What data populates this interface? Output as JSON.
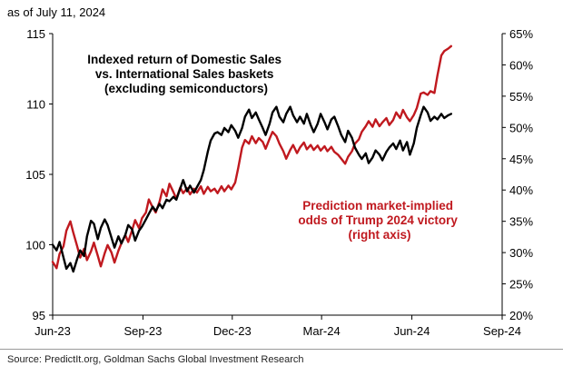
{
  "header": {
    "as_of": "as of July 11, 2024"
  },
  "footer": {
    "source": "Source: PredictIt.org, Goldman Sachs Global Investment Research"
  },
  "chart_data": {
    "type": "line",
    "title_lines": [
      "Indexed return of Domestic Sales",
      "vs. International Sales baskets",
      "(excluding semiconductors)"
    ],
    "annotation_lines": [
      "Prediction market-implied",
      "odds of Trump 2024 victory",
      "(right axis)"
    ],
    "x_axis": {
      "type": "date",
      "range": [
        "2023-06-01",
        "2024-09-01"
      ],
      "tick_values": [
        "2023-06-01",
        "2023-09-01",
        "2023-12-01",
        "2024-03-01",
        "2024-06-01",
        "2024-09-01"
      ],
      "tick_labels": [
        "Jun-23",
        "Sep-23",
        "Dec-23",
        "Mar-24",
        "Jun-24",
        "Sep-24"
      ]
    },
    "y_left": {
      "range": [
        95,
        115
      ],
      "ticks": [
        95,
        100,
        105,
        110,
        115
      ],
      "tick_labels": [
        "95",
        "100",
        "105",
        "110",
        "115"
      ]
    },
    "y_right": {
      "range": [
        20,
        65
      ],
      "ticks": [
        20,
        25,
        30,
        35,
        40,
        45,
        50,
        55,
        60,
        65
      ],
      "tick_labels": [
        "20%",
        "25%",
        "30%",
        "35%",
        "40%",
        "45%",
        "50%",
        "55%",
        "60%",
        "65%"
      ]
    },
    "grid": false,
    "series": [
      {
        "axis": "left",
        "color": "#000000",
        "points": [
          [
            "2023-06-01",
            100.0
          ],
          [
            "2023-06-05",
            99.6
          ],
          [
            "2023-06-08",
            100.2
          ],
          [
            "2023-06-12",
            99.1
          ],
          [
            "2023-06-15",
            98.3
          ],
          [
            "2023-06-19",
            98.7
          ],
          [
            "2023-06-22",
            98.1
          ],
          [
            "2023-06-26",
            99.0
          ],
          [
            "2023-06-29",
            99.6
          ],
          [
            "2023-07-03",
            99.2
          ],
          [
            "2023-07-06",
            100.6
          ],
          [
            "2023-07-10",
            101.7
          ],
          [
            "2023-07-13",
            101.5
          ],
          [
            "2023-07-17",
            100.4
          ],
          [
            "2023-07-20",
            101.2
          ],
          [
            "2023-07-24",
            101.8
          ],
          [
            "2023-07-27",
            101.4
          ],
          [
            "2023-07-31",
            100.5
          ],
          [
            "2023-08-03",
            99.8
          ],
          [
            "2023-08-07",
            100.6
          ],
          [
            "2023-08-10",
            100.1
          ],
          [
            "2023-08-14",
            100.7
          ],
          [
            "2023-08-17",
            101.4
          ],
          [
            "2023-08-21",
            101.1
          ],
          [
            "2023-08-24",
            100.3
          ],
          [
            "2023-08-28",
            101.0
          ],
          [
            "2023-08-31",
            101.3
          ],
          [
            "2023-09-04",
            101.8
          ],
          [
            "2023-09-07",
            102.2
          ],
          [
            "2023-09-11",
            102.7
          ],
          [
            "2023-09-14",
            102.4
          ],
          [
            "2023-09-18",
            102.9
          ],
          [
            "2023-09-21",
            102.6
          ],
          [
            "2023-09-25",
            103.2
          ],
          [
            "2023-09-28",
            103.1
          ],
          [
            "2023-10-02",
            103.4
          ],
          [
            "2023-10-05",
            103.2
          ],
          [
            "2023-10-09",
            104.0
          ],
          [
            "2023-10-12",
            104.6
          ],
          [
            "2023-10-16",
            103.8
          ],
          [
            "2023-10-19",
            104.2
          ],
          [
            "2023-10-23",
            103.7
          ],
          [
            "2023-10-26",
            104.1
          ],
          [
            "2023-10-30",
            104.6
          ],
          [
            "2023-11-02",
            105.3
          ],
          [
            "2023-11-06",
            106.6
          ],
          [
            "2023-11-09",
            107.4
          ],
          [
            "2023-11-13",
            107.9
          ],
          [
            "2023-11-16",
            108.0
          ],
          [
            "2023-11-20",
            107.8
          ],
          [
            "2023-11-23",
            108.3
          ],
          [
            "2023-11-27",
            108.0
          ],
          [
            "2023-11-30",
            108.5
          ],
          [
            "2023-12-04",
            108.1
          ],
          [
            "2023-12-07",
            107.6
          ],
          [
            "2023-12-11",
            108.3
          ],
          [
            "2023-12-14",
            109.1
          ],
          [
            "2023-12-18",
            109.6
          ],
          [
            "2023-12-21",
            109.0
          ],
          [
            "2023-12-25",
            109.4
          ],
          [
            "2023-12-28",
            108.9
          ],
          [
            "2024-01-01",
            108.3
          ],
          [
            "2024-01-04",
            107.8
          ],
          [
            "2024-01-08",
            108.6
          ],
          [
            "2024-01-11",
            109.4
          ],
          [
            "2024-01-15",
            109.8
          ],
          [
            "2024-01-18",
            109.1
          ],
          [
            "2024-01-22",
            108.7
          ],
          [
            "2024-01-25",
            109.3
          ],
          [
            "2024-01-29",
            109.8
          ],
          [
            "2024-02-01",
            109.2
          ],
          [
            "2024-02-05",
            108.7
          ],
          [
            "2024-02-08",
            109.1
          ],
          [
            "2024-02-12",
            108.6
          ],
          [
            "2024-02-15",
            109.3
          ],
          [
            "2024-02-19",
            108.5
          ],
          [
            "2024-02-22",
            108.0
          ],
          [
            "2024-02-26",
            108.6
          ],
          [
            "2024-02-29",
            109.3
          ],
          [
            "2024-03-04",
            108.7
          ],
          [
            "2024-03-07",
            108.2
          ],
          [
            "2024-03-11",
            108.9
          ],
          [
            "2024-03-14",
            109.1
          ],
          [
            "2024-03-18",
            108.4
          ],
          [
            "2024-03-21",
            107.8
          ],
          [
            "2024-03-25",
            107.3
          ],
          [
            "2024-03-28",
            108.1
          ],
          [
            "2024-04-01",
            107.6
          ],
          [
            "2024-04-04",
            106.9
          ],
          [
            "2024-04-08",
            106.4
          ],
          [
            "2024-04-11",
            106.1
          ],
          [
            "2024-04-15",
            106.5
          ],
          [
            "2024-04-18",
            105.8
          ],
          [
            "2024-04-22",
            106.2
          ],
          [
            "2024-04-25",
            106.7
          ],
          [
            "2024-04-29",
            106.4
          ],
          [
            "2024-05-02",
            106.0
          ],
          [
            "2024-05-06",
            106.6
          ],
          [
            "2024-05-09",
            106.9
          ],
          [
            "2024-05-13",
            107.2
          ],
          [
            "2024-05-16",
            106.8
          ],
          [
            "2024-05-20",
            107.4
          ],
          [
            "2024-05-23",
            106.7
          ],
          [
            "2024-05-27",
            107.3
          ],
          [
            "2024-05-30",
            106.4
          ],
          [
            "2024-06-03",
            107.2
          ],
          [
            "2024-06-06",
            108.3
          ],
          [
            "2024-06-10",
            109.2
          ],
          [
            "2024-06-13",
            109.8
          ],
          [
            "2024-06-17",
            109.4
          ],
          [
            "2024-06-20",
            108.8
          ],
          [
            "2024-06-24",
            109.1
          ],
          [
            "2024-06-27",
            108.9
          ],
          [
            "2024-07-01",
            109.3
          ],
          [
            "2024-07-04",
            109.0
          ],
          [
            "2024-07-08",
            109.2
          ],
          [
            "2024-07-11",
            109.3
          ]
        ]
      },
      {
        "axis": "right",
        "color": "#c0191f",
        "points": [
          [
            "2023-06-01",
            28.5
          ],
          [
            "2023-06-05",
            27.5
          ],
          [
            "2023-06-08",
            29.8
          ],
          [
            "2023-06-12",
            31.0
          ],
          [
            "2023-06-15",
            33.5
          ],
          [
            "2023-06-19",
            35.0
          ],
          [
            "2023-06-22",
            33.2
          ],
          [
            "2023-06-26",
            31.0
          ],
          [
            "2023-06-29",
            29.2
          ],
          [
            "2023-07-03",
            30.6
          ],
          [
            "2023-07-06",
            28.8
          ],
          [
            "2023-07-10",
            30.2
          ],
          [
            "2023-07-13",
            31.6
          ],
          [
            "2023-07-17",
            29.5
          ],
          [
            "2023-07-20",
            27.8
          ],
          [
            "2023-07-24",
            29.9
          ],
          [
            "2023-07-27",
            31.2
          ],
          [
            "2023-07-31",
            30.0
          ],
          [
            "2023-08-03",
            28.4
          ],
          [
            "2023-08-07",
            30.3
          ],
          [
            "2023-08-10",
            31.5
          ],
          [
            "2023-08-14",
            32.8
          ],
          [
            "2023-08-17",
            31.7
          ],
          [
            "2023-08-21",
            33.6
          ],
          [
            "2023-08-24",
            35.2
          ],
          [
            "2023-08-28",
            33.9
          ],
          [
            "2023-08-31",
            35.5
          ],
          [
            "2023-09-04",
            36.4
          ],
          [
            "2023-09-07",
            38.5
          ],
          [
            "2023-09-11",
            37.2
          ],
          [
            "2023-09-14",
            36.4
          ],
          [
            "2023-09-18",
            38.2
          ],
          [
            "2023-09-21",
            40.1
          ],
          [
            "2023-09-25",
            39.0
          ],
          [
            "2023-09-28",
            41.0
          ],
          [
            "2023-10-02",
            39.7
          ],
          [
            "2023-10-05",
            38.6
          ],
          [
            "2023-10-09",
            40.4
          ],
          [
            "2023-10-12",
            39.5
          ],
          [
            "2023-10-16",
            40.3
          ],
          [
            "2023-10-19",
            39.3
          ],
          [
            "2023-10-23",
            40.2
          ],
          [
            "2023-10-26",
            39.6
          ],
          [
            "2023-10-30",
            40.6
          ],
          [
            "2023-11-02",
            39.4
          ],
          [
            "2023-11-06",
            40.5
          ],
          [
            "2023-11-09",
            39.8
          ],
          [
            "2023-11-13",
            40.2
          ],
          [
            "2023-11-16",
            39.5
          ],
          [
            "2023-11-20",
            40.6
          ],
          [
            "2023-11-23",
            39.8
          ],
          [
            "2023-11-27",
            40.7
          ],
          [
            "2023-11-30",
            40.1
          ],
          [
            "2023-12-04",
            41.2
          ],
          [
            "2023-12-07",
            43.5
          ],
          [
            "2023-12-11",
            46.8
          ],
          [
            "2023-12-14",
            48.0
          ],
          [
            "2023-12-18",
            47.4
          ],
          [
            "2023-12-21",
            48.6
          ],
          [
            "2023-12-25",
            47.5
          ],
          [
            "2023-12-28",
            48.3
          ],
          [
            "2024-01-01",
            47.7
          ],
          [
            "2024-01-04",
            46.6
          ],
          [
            "2024-01-08",
            48.2
          ],
          [
            "2024-01-11",
            49.3
          ],
          [
            "2024-01-15",
            48.6
          ],
          [
            "2024-01-18",
            47.4
          ],
          [
            "2024-01-22",
            46.2
          ],
          [
            "2024-01-25",
            45.0
          ],
          [
            "2024-01-29",
            46.4
          ],
          [
            "2024-02-01",
            47.2
          ],
          [
            "2024-02-05",
            45.9
          ],
          [
            "2024-02-08",
            46.8
          ],
          [
            "2024-02-12",
            47.6
          ],
          [
            "2024-02-15",
            46.5
          ],
          [
            "2024-02-19",
            47.2
          ],
          [
            "2024-02-22",
            46.4
          ],
          [
            "2024-02-26",
            47.1
          ],
          [
            "2024-02-29",
            46.3
          ],
          [
            "2024-03-04",
            47.0
          ],
          [
            "2024-03-07",
            46.2
          ],
          [
            "2024-03-11",
            46.9
          ],
          [
            "2024-03-14",
            46.1
          ],
          [
            "2024-03-18",
            45.6
          ],
          [
            "2024-03-21",
            45.0
          ],
          [
            "2024-03-25",
            44.2
          ],
          [
            "2024-03-28",
            45.3
          ],
          [
            "2024-04-01",
            46.2
          ],
          [
            "2024-04-04",
            47.4
          ],
          [
            "2024-04-08",
            48.1
          ],
          [
            "2024-04-11",
            49.3
          ],
          [
            "2024-04-15",
            50.2
          ],
          [
            "2024-04-18",
            51.0
          ],
          [
            "2024-04-22",
            50.1
          ],
          [
            "2024-04-25",
            51.3
          ],
          [
            "2024-04-29",
            50.2
          ],
          [
            "2024-05-02",
            50.8
          ],
          [
            "2024-05-06",
            51.5
          ],
          [
            "2024-05-09",
            50.4
          ],
          [
            "2024-05-13",
            51.2
          ],
          [
            "2024-05-16",
            52.4
          ],
          [
            "2024-05-20",
            51.5
          ],
          [
            "2024-05-23",
            52.8
          ],
          [
            "2024-05-27",
            51.6
          ],
          [
            "2024-05-30",
            51.0
          ],
          [
            "2024-06-03",
            52.0
          ],
          [
            "2024-06-06",
            53.1
          ],
          [
            "2024-06-10",
            55.4
          ],
          [
            "2024-06-13",
            55.6
          ],
          [
            "2024-06-17",
            55.2
          ],
          [
            "2024-06-20",
            55.8
          ],
          [
            "2024-06-24",
            55.5
          ],
          [
            "2024-06-27",
            58.3
          ],
          [
            "2024-07-01",
            61.5
          ],
          [
            "2024-07-04",
            62.2
          ],
          [
            "2024-07-08",
            62.6
          ],
          [
            "2024-07-11",
            63.0
          ]
        ]
      }
    ]
  }
}
